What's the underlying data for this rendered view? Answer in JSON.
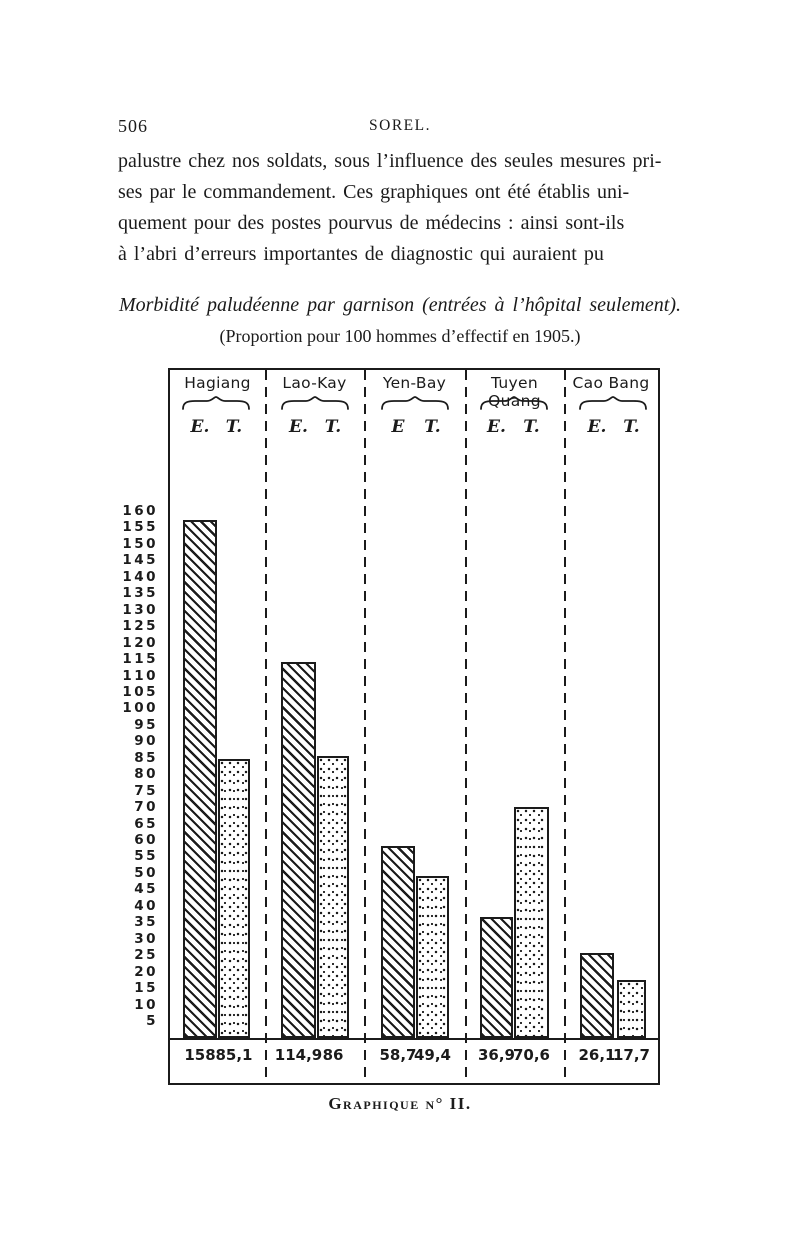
{
  "page": {
    "number": "506",
    "running_head": "SOREL."
  },
  "paragraph": {
    "lines": [
      "palustre chez nos soldats, sous l’influence des seules mesures pri-",
      "ses par le commandement. Ces graphiques ont été établis uni-",
      "quement pour des postes pourvus de médecins : ainsi sont-ils",
      "à l’abri d’erreurs importantes de diagnostic qui auraient pu"
    ]
  },
  "figure": {
    "title": "Morbidité paludéenne par garnison (entrées à l’hôpital seulement).",
    "subtitle": "(Proportion pour 100 hommes d’effectif en 1905.)",
    "caption": "Graphique n° II."
  },
  "chart_data": {
    "type": "bar",
    "title": "Morbidité paludéenne par garnison (entrées à l’hôpital seulement)",
    "subtitle": "Proportion pour 100 hommes d’effectif en 1905",
    "categories": [
      "Hagiang",
      "Lao-Kay",
      "Yen-Bay",
      "Tuyen Quang",
      "Cao Bang"
    ],
    "series": [
      {
        "name": "E.",
        "pattern": "diagonal-hatch",
        "values": [
          158,
          114.9,
          58.7,
          36.9,
          26.1
        ]
      },
      {
        "name": "T.",
        "pattern": "stipple-dots",
        "values": [
          85.1,
          86,
          49.4,
          70.6,
          17.7
        ]
      }
    ],
    "column_series_labels": [
      [
        "E.",
        "T."
      ],
      [
        "E.",
        "T."
      ],
      [
        "E",
        "T."
      ],
      [
        "E.",
        "T."
      ],
      [
        "E.",
        "T."
      ]
    ],
    "value_display": [
      [
        "158",
        "85,1"
      ],
      [
        "114,9",
        "86"
      ],
      [
        "58,7",
        "49,4"
      ],
      [
        "36,9",
        "70,6"
      ],
      [
        "26,1",
        "17,7"
      ]
    ],
    "y_ticks": [
      "160",
      "155",
      "150",
      "145",
      "140",
      "135",
      "130",
      "125",
      "120",
      "115",
      "110",
      "105",
      "100",
      "95",
      "90",
      "85",
      "80",
      "75",
      "70",
      "65",
      "60",
      "55",
      "50",
      "45",
      "40",
      "35",
      "30",
      "25",
      "20",
      "15",
      "10",
      "5"
    ],
    "ylim": [
      0,
      160
    ],
    "grid": false,
    "legend_position": "per-column-header",
    "ink_color": "#1b1b1b"
  }
}
